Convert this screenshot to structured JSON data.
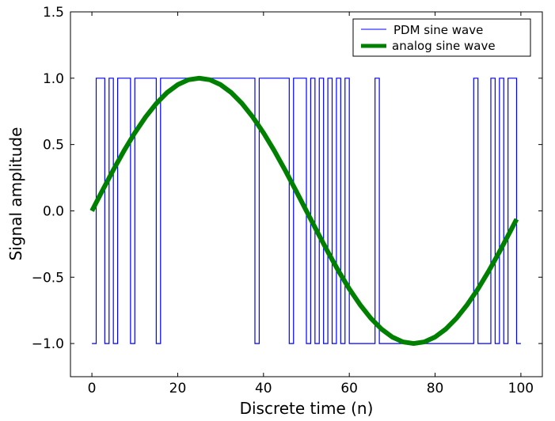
{
  "chart_data": {
    "type": "line",
    "title": "",
    "xlabel": "Discrete time (n)",
    "ylabel": "Signal amplitude",
    "xlim": [
      -5,
      105
    ],
    "ylim": [
      -1.25,
      1.5
    ],
    "xticks": [
      0,
      20,
      40,
      60,
      80,
      100
    ],
    "xtick_labels": [
      "0",
      "20",
      "40",
      "60",
      "80",
      "100"
    ],
    "yticks": [
      -1.0,
      -0.5,
      0.0,
      0.5,
      1.0,
      1.5
    ],
    "ytick_labels": [
      "−1.0",
      "−0.5",
      "0.0",
      "0.5",
      "1.0",
      "1.5"
    ],
    "grid": false,
    "legend_position": "top-right",
    "series": [
      {
        "name": "PDM sine wave",
        "style": "step",
        "color": "#0000ff",
        "x": [
          0,
          1,
          2,
          3,
          4,
          5,
          6,
          7,
          8,
          9,
          10,
          11,
          12,
          13,
          14,
          15,
          16,
          17,
          18,
          19,
          20,
          21,
          22,
          23,
          24,
          25,
          26,
          27,
          28,
          29,
          30,
          31,
          32,
          33,
          34,
          35,
          36,
          37,
          38,
          39,
          40,
          41,
          42,
          43,
          44,
          45,
          46,
          47,
          48,
          49,
          50,
          51,
          52,
          53,
          54,
          55,
          56,
          57,
          58,
          59,
          60,
          61,
          62,
          63,
          64,
          65,
          66,
          67,
          68,
          69,
          70,
          71,
          72,
          73,
          74,
          75,
          76,
          77,
          78,
          79,
          80,
          81,
          82,
          83,
          84,
          85,
          86,
          87,
          88,
          89,
          90,
          91,
          92,
          93,
          94,
          95,
          96,
          97,
          98,
          99
        ],
        "values": [
          -1,
          1,
          1,
          -1,
          1,
          -1,
          1,
          1,
          1,
          -1,
          1,
          1,
          1,
          1,
          1,
          -1,
          1,
          1,
          1,
          1,
          1,
          1,
          1,
          1,
          1,
          1,
          1,
          1,
          1,
          1,
          1,
          1,
          1,
          1,
          1,
          1,
          1,
          1,
          -1,
          1,
          1,
          1,
          1,
          1,
          1,
          1,
          -1,
          1,
          1,
          1,
          -1,
          1,
          -1,
          1,
          -1,
          1,
          -1,
          1,
          -1,
          1,
          -1,
          -1,
          -1,
          -1,
          -1,
          -1,
          1,
          -1,
          -1,
          -1,
          -1,
          -1,
          -1,
          -1,
          -1,
          -1,
          -1,
          -1,
          -1,
          -1,
          -1,
          -1,
          -1,
          -1,
          -1,
          -1,
          -1,
          -1,
          -1,
          1,
          -1,
          -1,
          -1,
          1,
          -1,
          1,
          -1,
          1,
          1,
          -1
        ]
      },
      {
        "name": "analog sine wave",
        "style": "line",
        "color": "#008000",
        "function": "sin(2*pi*n/100)",
        "x": [
          0,
          2.5,
          5,
          7.5,
          10,
          12.5,
          15,
          17.5,
          20,
          22.5,
          25,
          27.5,
          30,
          32.5,
          35,
          37.5,
          40,
          42.5,
          45,
          47.5,
          50,
          52.5,
          55,
          57.5,
          60,
          62.5,
          65,
          67.5,
          70,
          72.5,
          75,
          77.5,
          80,
          82.5,
          85,
          87.5,
          90,
          92.5,
          95,
          97.5,
          99
        ],
        "values": [
          0,
          0.156,
          0.309,
          0.454,
          0.588,
          0.707,
          0.809,
          0.891,
          0.951,
          0.988,
          1,
          0.988,
          0.951,
          0.891,
          0.809,
          0.707,
          0.588,
          0.454,
          0.309,
          0.156,
          0,
          -0.156,
          -0.309,
          -0.454,
          -0.588,
          -0.707,
          -0.809,
          -0.891,
          -0.951,
          -0.988,
          -1,
          -0.988,
          -0.951,
          -0.891,
          -0.809,
          -0.707,
          -0.588,
          -0.454,
          -0.309,
          -0.156,
          -0.063
        ]
      }
    ]
  }
}
